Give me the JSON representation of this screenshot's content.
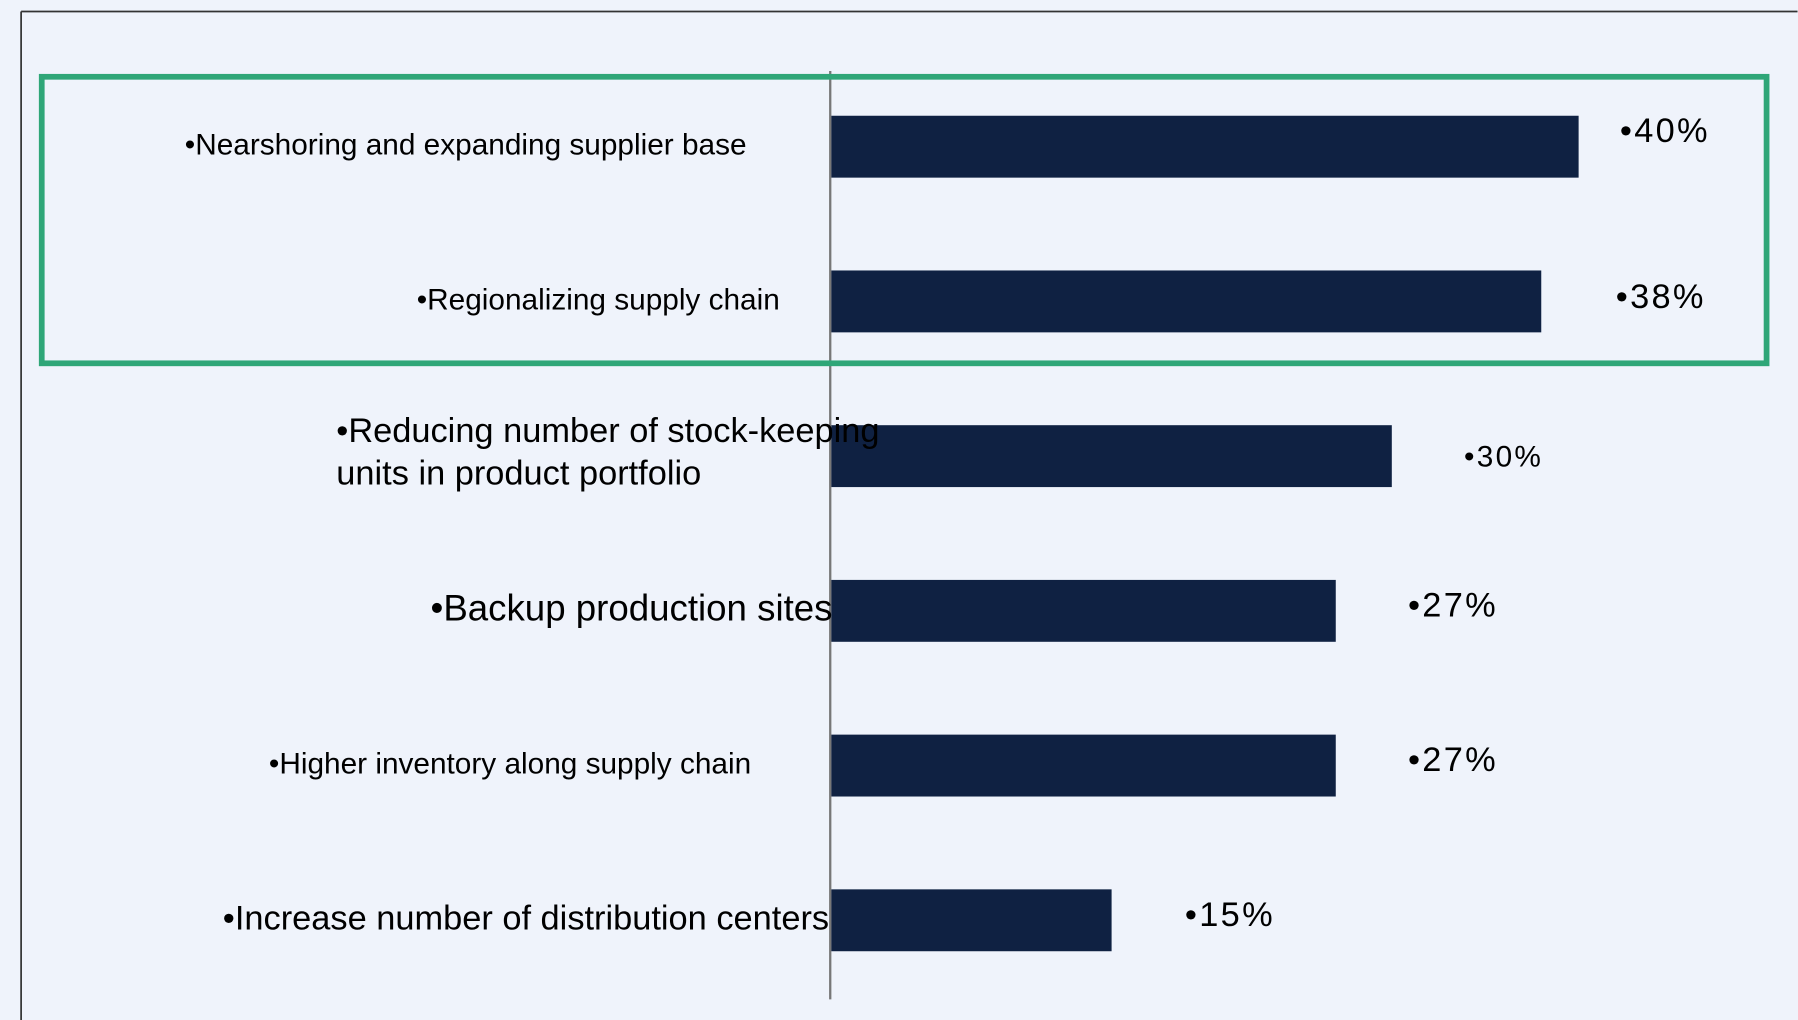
{
  "chart_data": {
    "type": "bar",
    "categories": [
      "•Nearshoring and expanding supplier base",
      "•Regionalizing supply chain",
      "•Reducing number of stock-keeping units in product portfolio",
      "•Backup production sites",
      "•Higher inventory along supply chain",
      "•Increase number of distribution centers"
    ],
    "values": [
      40,
      38,
      30,
      27,
      27,
      15
    ],
    "value_labels": [
      "•40%",
      "•38%",
      "•30%",
      "•27%",
      "•27%",
      "•15%"
    ],
    "color": "#0f2142"
  }
}
